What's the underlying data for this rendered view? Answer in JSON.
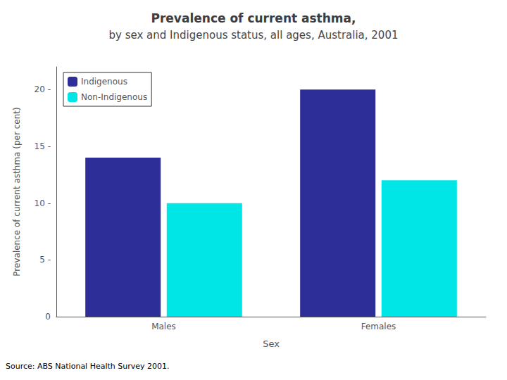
{
  "chart_data": {
    "type": "bar",
    "title": "Prevalence of current asthma,",
    "subtitle": "by sex and Indigenous status, all ages, Australia, 2001",
    "categories": [
      "Males",
      "Females"
    ],
    "series": [
      {
        "name": "Indigenous",
        "color": "#2e2e99",
        "values": [
          14.0,
          20.0
        ]
      },
      {
        "name": "Non-Indigenous",
        "color": "#00e5e5",
        "values": [
          10.0,
          12.0
        ]
      }
    ],
    "xlabel": "Sex",
    "ylabel": "Prevalence of current asthma (per cent)",
    "ylim": [
      0,
      22
    ],
    "yticks": [
      0,
      {
        "value": 5,
        "label": "5 -"
      },
      {
        "value": 10,
        "label": "10 -"
      },
      {
        "value": 15,
        "label": "15 -"
      },
      {
        "value": 20,
        "label": "20 -"
      }
    ],
    "source": "Source: ABS National Health Survey 2001.",
    "legend": "upper left",
    "grid": false
  }
}
